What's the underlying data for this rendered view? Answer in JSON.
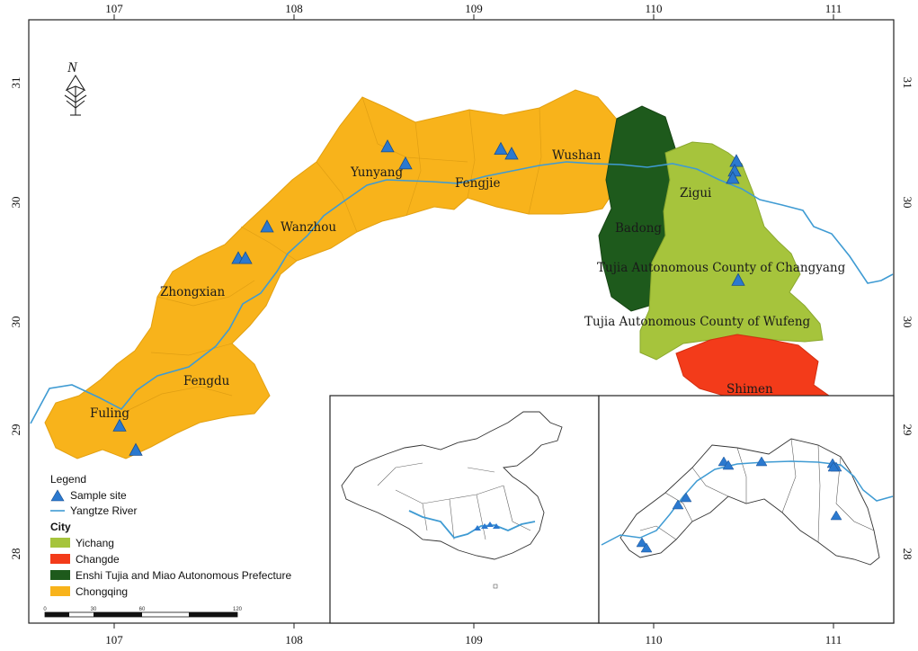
{
  "colors": {
    "chongqing": "#f8b31b",
    "yichang": "#a6c43c",
    "changde": "#f33b1a",
    "enshi": "#1e5a1c",
    "river": "#3f9bd3",
    "site": "#2b79cf"
  },
  "north_arrow": {
    "label": "N",
    "icon": "north-arrow-icon"
  },
  "axes": {
    "top_ticks": [
      "107",
      "108",
      "109",
      "110",
      "111"
    ],
    "bottom_ticks": [
      "107",
      "108",
      "109",
      "110",
      "111"
    ],
    "left_ticks": [
      "31",
      "30",
      "30",
      "29",
      "28"
    ],
    "right_ticks": [
      "31",
      "30",
      "30",
      "29",
      "28"
    ]
  },
  "places": {
    "yunyang": "Yunyang",
    "fengjie": "Fengjie",
    "wushan": "Wushan",
    "zigui": "Zigui",
    "badong": "Badong",
    "wanzhou": "Wanzhou",
    "changyang": "Tujia Autonomous County of Changyang",
    "zhongxian": "Zhongxian",
    "wufeng": "Tujia Autonomous County of Wufeng",
    "fengdu": "Fengdu",
    "shimen": "Shimen",
    "fuling": "Fuling"
  },
  "sample_sites": [
    {
      "lon": 108.52,
      "lat": 30.93
    },
    {
      "lon": 108.62,
      "lat": 30.86
    },
    {
      "lon": 109.15,
      "lat": 30.92
    },
    {
      "lon": 109.21,
      "lat": 30.9
    },
    {
      "lon": 110.46,
      "lat": 30.87
    },
    {
      "lon": 110.45,
      "lat": 30.83
    },
    {
      "lon": 110.44,
      "lat": 30.8
    },
    {
      "lon": 110.47,
      "lat": 30.38
    },
    {
      "lon": 107.85,
      "lat": 30.6
    },
    {
      "lon": 107.69,
      "lat": 30.47
    },
    {
      "lon": 107.73,
      "lat": 30.47
    },
    {
      "lon": 107.03,
      "lat": 29.78
    },
    {
      "lon": 107.12,
      "lat": 29.68
    }
  ],
  "legend": {
    "title": "Legend",
    "site_label": "Sample site",
    "river_label": "Yangtze River",
    "city_heading": "City",
    "cities": [
      {
        "label": "Yichang",
        "color": "#a6c43c"
      },
      {
        "label": "Changde",
        "color": "#f33b1a"
      },
      {
        "label": "Enshi Tujia and Miao Autonomous Prefecture",
        "color": "#1e5a1c"
      },
      {
        "label": "Chongqing",
        "color": "#f8b31b"
      }
    ]
  },
  "scale_bar": {
    "ticks": [
      "0",
      "30",
      "60",
      "120"
    ]
  }
}
